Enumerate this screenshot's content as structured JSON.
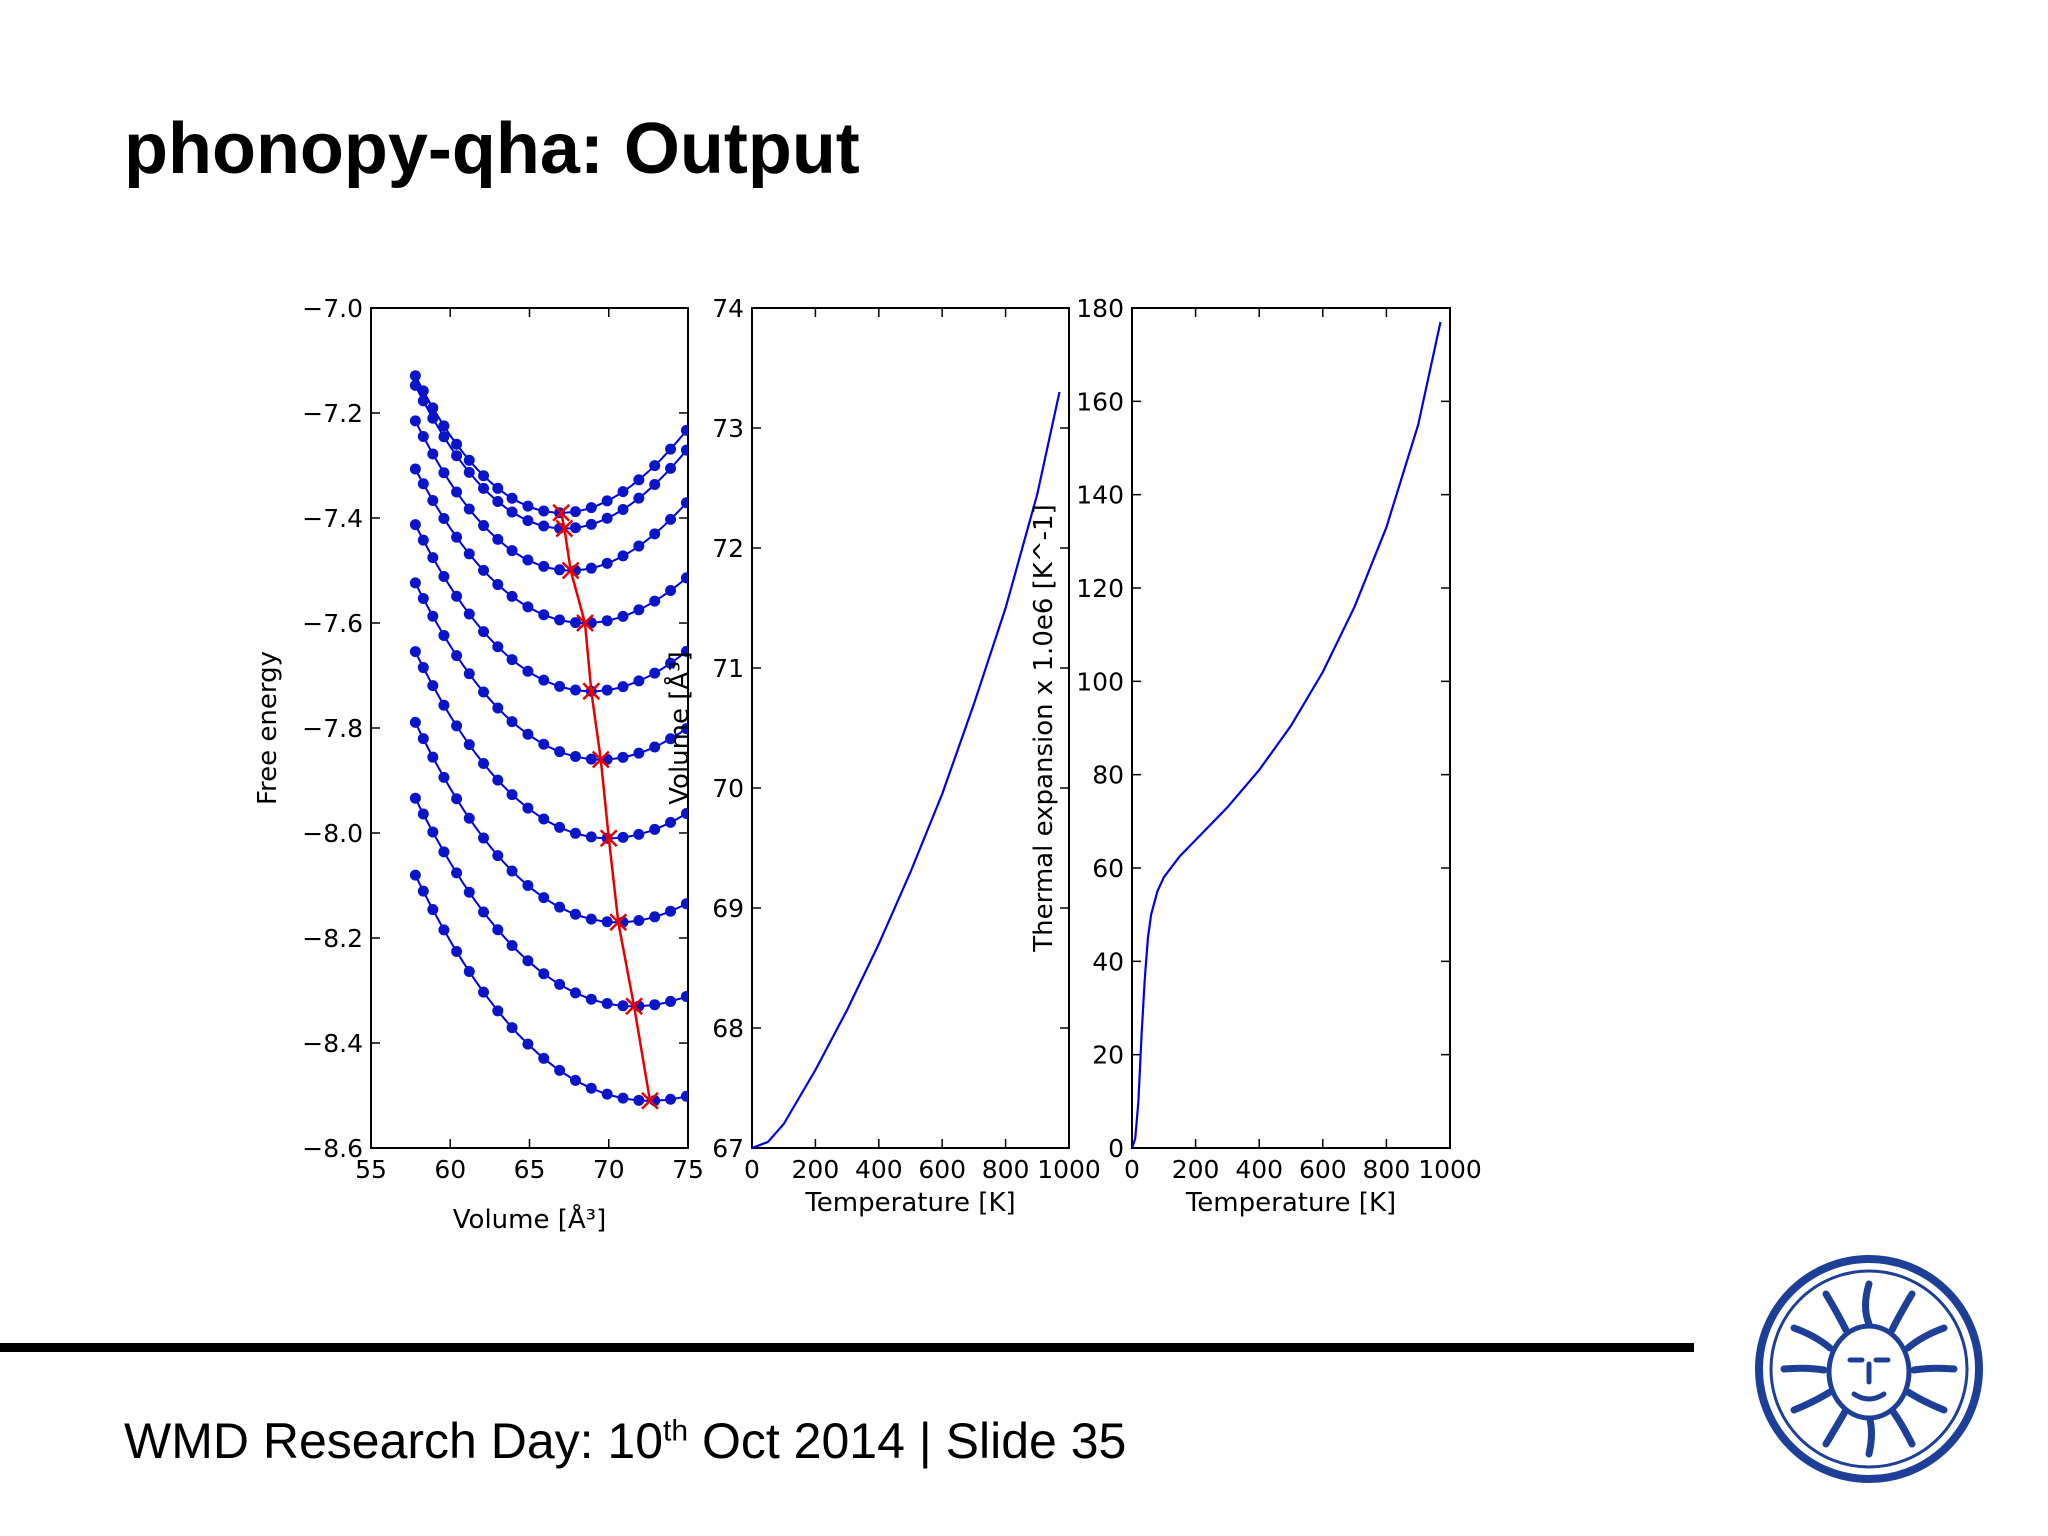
{
  "slide": {
    "title": "phonopy-qha: Output",
    "footer": {
      "prefix": "WMD Research Day: 10",
      "superscript": "th",
      "suffix": " Oct 2014 | Slide 35"
    }
  },
  "colors": {
    "curve_blue": "#0000e6",
    "marker_blue": "#0a14c8",
    "min_path_red": "#e60000",
    "seal_blue": "#1d3f98"
  },
  "icons": {
    "seal": "university-seal-icon"
  },
  "chart_data": [
    {
      "type": "line",
      "title": "",
      "xlabel": "Volume [Å³]",
      "ylabel": "Free energy",
      "xlim": [
        55,
        75
      ],
      "ylim": [
        -8.6,
        -7.0
      ],
      "xticks": [
        55,
        60,
        65,
        70,
        75
      ],
      "yticks": [
        -7.0,
        -7.2,
        -7.4,
        -7.6,
        -7.8,
        -8.0,
        -8.2,
        -8.4,
        -8.6
      ],
      "grid": false,
      "legend": "none",
      "curves": [
        {
          "v_min": 67.0,
          "f_min": -7.39,
          "f_start": -7.155
        },
        {
          "v_min": 67.2,
          "f_min": -7.42,
          "f_start": -7.175
        },
        {
          "v_min": 67.6,
          "f_min": -7.5,
          "f_start": -7.245
        },
        {
          "v_min": 68.5,
          "f_min": -7.6,
          "f_start": -7.34
        },
        {
          "v_min": 68.9,
          "f_min": -7.73,
          "f_start": -7.45
        },
        {
          "v_min": 69.5,
          "f_min": -7.86,
          "f_start": -7.565
        },
        {
          "v_min": 70.0,
          "f_min": -8.01,
          "f_start": -7.7
        },
        {
          "v_min": 70.6,
          "f_min": -8.17,
          "f_start": -7.84
        },
        {
          "v_min": 71.6,
          "f_min": -8.33,
          "f_start": -7.99
        },
        {
          "v_min": 72.6,
          "f_min": -8.51,
          "f_start": -8.145
        }
      ],
      "volume_points": [
        57.8,
        58.3,
        58.9,
        59.6,
        60.4,
        61.2,
        62.1,
        63.0,
        63.9,
        64.9,
        65.9,
        66.9,
        67.9,
        68.9,
        69.9,
        70.9,
        71.9,
        72.9,
        73.9,
        74.9
      ],
      "minimum_path": {
        "v": [
          67.0,
          67.2,
          67.6,
          68.5,
          68.9,
          69.5,
          70.0,
          70.6,
          71.6,
          72.6
        ],
        "f": [
          -7.39,
          -7.42,
          -7.5,
          -7.6,
          -7.73,
          -7.86,
          -8.01,
          -8.17,
          -8.33,
          -8.51
        ]
      }
    },
    {
      "type": "line",
      "title": "",
      "xlabel": "Temperature [K]",
      "ylabel": "Volume [Å³]",
      "xlim": [
        0,
        1000
      ],
      "ylim": [
        67,
        74
      ],
      "xticks": [
        0,
        200,
        400,
        600,
        800,
        1000
      ],
      "yticks": [
        67,
        68,
        69,
        70,
        71,
        72,
        73,
        74
      ],
      "grid": false,
      "legend": "none",
      "series": [
        {
          "x": [
            0,
            50,
            100,
            200,
            300,
            400,
            500,
            600,
            700,
            800,
            900,
            970
          ],
          "y": [
            67.0,
            67.05,
            67.2,
            67.65,
            68.15,
            68.7,
            69.3,
            69.95,
            70.7,
            71.5,
            72.45,
            73.3
          ]
        }
      ]
    },
    {
      "type": "line",
      "title": "",
      "xlabel": "Temperature [K]",
      "ylabel": "Thermal expansion x 1.0e6 [K^-1]",
      "xlim": [
        0,
        1000
      ],
      "ylim": [
        0,
        180
      ],
      "xticks": [
        0,
        200,
        400,
        600,
        800,
        1000
      ],
      "yticks": [
        0,
        20,
        40,
        60,
        80,
        100,
        120,
        140,
        160,
        180
      ],
      "grid": false,
      "legend": "none",
      "series": [
        {
          "x": [
            0,
            10,
            20,
            30,
            40,
            50,
            60,
            80,
            100,
            150,
            200,
            300,
            400,
            500,
            600,
            700,
            800,
            900,
            970
          ],
          "y": [
            0,
            2,
            10,
            24,
            36,
            45,
            50,
            55,
            58,
            62.5,
            66,
            73,
            81,
            90.5,
            102,
            116,
            133,
            155,
            177
          ]
        }
      ]
    }
  ]
}
